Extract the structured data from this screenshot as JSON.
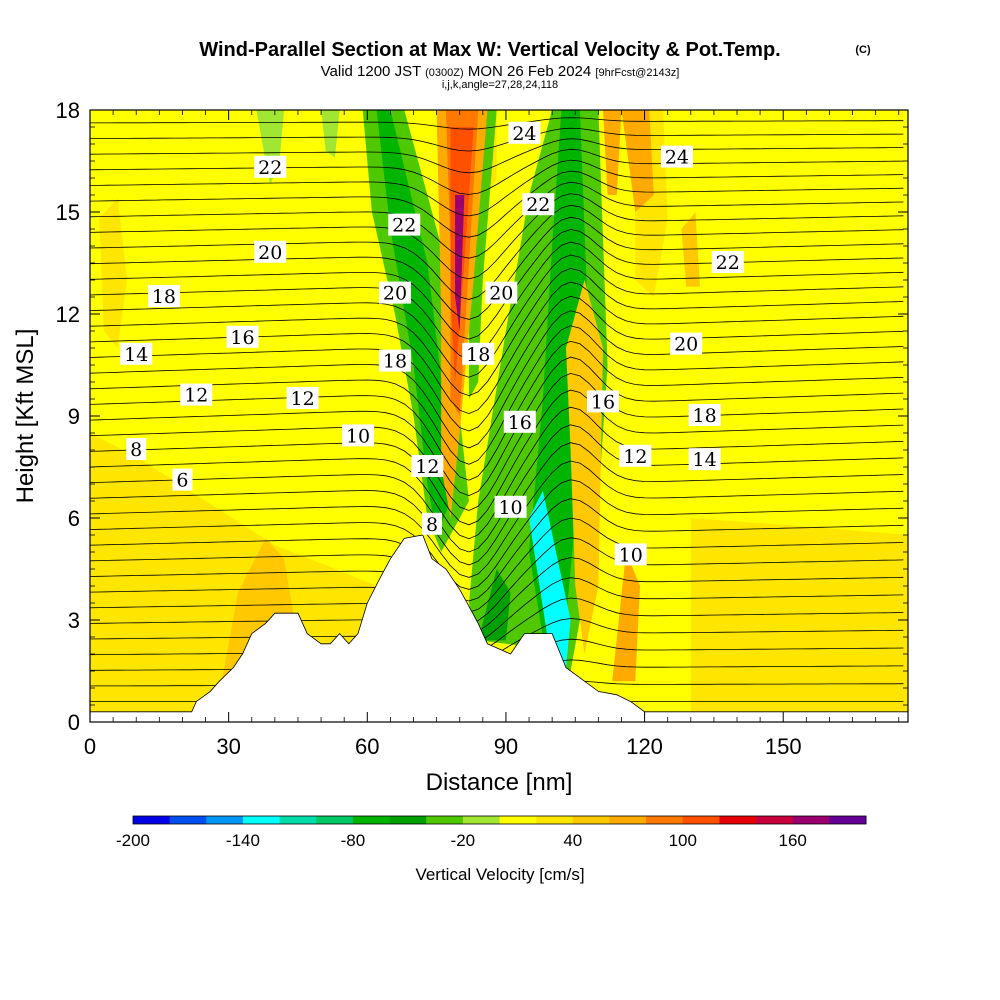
{
  "title": {
    "main": "Wind-Parallel Section at Max W: Vertical Velocity & Pot.Temp.",
    "copyright": "(C)",
    "valid_prefix": "Valid 1200 JST",
    "valid_utc": "(0300Z)",
    "valid_date": "MON 26 Feb 2024",
    "forecast": "[9hrFcst@2143z]",
    "indices": "i,j,k,angle=27,28,24,118"
  },
  "chart_data": {
    "type": "heatmap",
    "xlabel": "Distance [nm]",
    "ylabel": "Height [Kft MSL]",
    "xlim": [
      0,
      177
    ],
    "ylim": [
      0,
      18
    ],
    "x_ticks": [
      "0",
      "30",
      "60",
      "90",
      "120",
      "150"
    ],
    "x_tick_values": [
      0,
      30,
      60,
      90,
      120,
      150
    ],
    "y_ticks": [
      "0",
      "3",
      "6",
      "9",
      "12",
      "15",
      "18"
    ],
    "y_tick_values": [
      0,
      3,
      6,
      9,
      12,
      15,
      18
    ],
    "fill_variable": "Vertical Velocity",
    "colorbar": {
      "label": "Vertical Velocity [cm/s]",
      "tick_labels": [
        "-200",
        "-140",
        "-80",
        "-20",
        "40",
        "100",
        "160"
      ],
      "tick_values": [
        -200,
        -140,
        -80,
        -20,
        40,
        100,
        160
      ],
      "levels": [
        -200,
        -180,
        -160,
        -140,
        -120,
        -100,
        -80,
        -60,
        -40,
        -20,
        0,
        20,
        40,
        60,
        80,
        100,
        120,
        140,
        160,
        180
      ],
      "colors": [
        "#0000e6",
        "#0050f0",
        "#0096f5",
        "#00ffff",
        "#00dcaa",
        "#00c864",
        "#00b400",
        "#00a000",
        "#50c800",
        "#a0e632",
        "#ffff00",
        "#ffe600",
        "#ffc800",
        "#ffaa00",
        "#ff7800",
        "#ff5000",
        "#e60000",
        "#c8003c",
        "#9b006e",
        "#640096"
      ]
    },
    "contour_variable": "Pot.Temp.",
    "contour_labels": [
      {
        "text": "24",
        "x": 94,
        "y": 17.3
      },
      {
        "text": "24",
        "x": 127,
        "y": 16.6
      },
      {
        "text": "22",
        "x": 39,
        "y": 16.3
      },
      {
        "text": "22",
        "x": 97,
        "y": 15.2
      },
      {
        "text": "22",
        "x": 68,
        "y": 14.6
      },
      {
        "text": "22",
        "x": 138,
        "y": 13.5
      },
      {
        "text": "20",
        "x": 39,
        "y": 13.8
      },
      {
        "text": "20",
        "x": 66,
        "y": 12.6
      },
      {
        "text": "20",
        "x": 89,
        "y": 12.6
      },
      {
        "text": "20",
        "x": 129,
        "y": 11.1
      },
      {
        "text": "18",
        "x": 16,
        "y": 12.5
      },
      {
        "text": "18",
        "x": 66,
        "y": 10.6
      },
      {
        "text": "18",
        "x": 84,
        "y": 10.8
      },
      {
        "text": "18",
        "x": 133,
        "y": 9.0
      },
      {
        "text": "16",
        "x": 33,
        "y": 11.3
      },
      {
        "text": "16",
        "x": 93,
        "y": 8.8
      },
      {
        "text": "16",
        "x": 111,
        "y": 9.4
      },
      {
        "text": "14",
        "x": 10,
        "y": 10.8
      },
      {
        "text": "14",
        "x": 133,
        "y": 7.7
      },
      {
        "text": "12",
        "x": 23,
        "y": 9.6
      },
      {
        "text": "12",
        "x": 46,
        "y": 9.5
      },
      {
        "text": "12",
        "x": 73,
        "y": 7.5
      },
      {
        "text": "12",
        "x": 118,
        "y": 7.8
      },
      {
        "text": "10",
        "x": 58,
        "y": 8.4
      },
      {
        "text": "10",
        "x": 91,
        "y": 6.3
      },
      {
        "text": "10",
        "x": 117,
        "y": 4.9
      },
      {
        "text": "8",
        "x": 10,
        "y": 8.0
      },
      {
        "text": "8",
        "x": 74,
        "y": 5.8
      },
      {
        "text": "6",
        "x": 20,
        "y": 7.1
      }
    ],
    "terrain": [
      [
        0,
        0.3
      ],
      [
        22,
        0.3
      ],
      [
        23,
        0.6
      ],
      [
        26,
        0.9
      ],
      [
        28,
        1.2
      ],
      [
        31,
        1.6
      ],
      [
        33,
        2.0
      ],
      [
        35,
        2.6
      ],
      [
        38,
        2.9
      ],
      [
        40,
        3.2
      ],
      [
        45,
        3.2
      ],
      [
        47,
        2.6
      ],
      [
        50,
        2.3
      ],
      [
        52,
        2.3
      ],
      [
        54,
        2.6
      ],
      [
        56,
        2.3
      ],
      [
        58,
        2.6
      ],
      [
        60,
        3.5
      ],
      [
        63,
        4.3
      ],
      [
        65,
        4.8
      ],
      [
        68,
        5.4
      ],
      [
        72,
        5.5
      ],
      [
        74,
        4.8
      ],
      [
        77,
        4.5
      ],
      [
        80,
        3.9
      ],
      [
        82,
        3.4
      ],
      [
        84,
        2.9
      ],
      [
        86,
        2.3
      ],
      [
        91,
        2.0
      ],
      [
        94,
        2.6
      ],
      [
        100,
        2.6
      ],
      [
        103,
        1.6
      ],
      [
        106,
        1.3
      ],
      [
        110,
        0.9
      ],
      [
        114,
        0.8
      ],
      [
        117,
        0.6
      ],
      [
        120,
        0.3
      ],
      [
        177,
        0.3
      ]
    ]
  }
}
